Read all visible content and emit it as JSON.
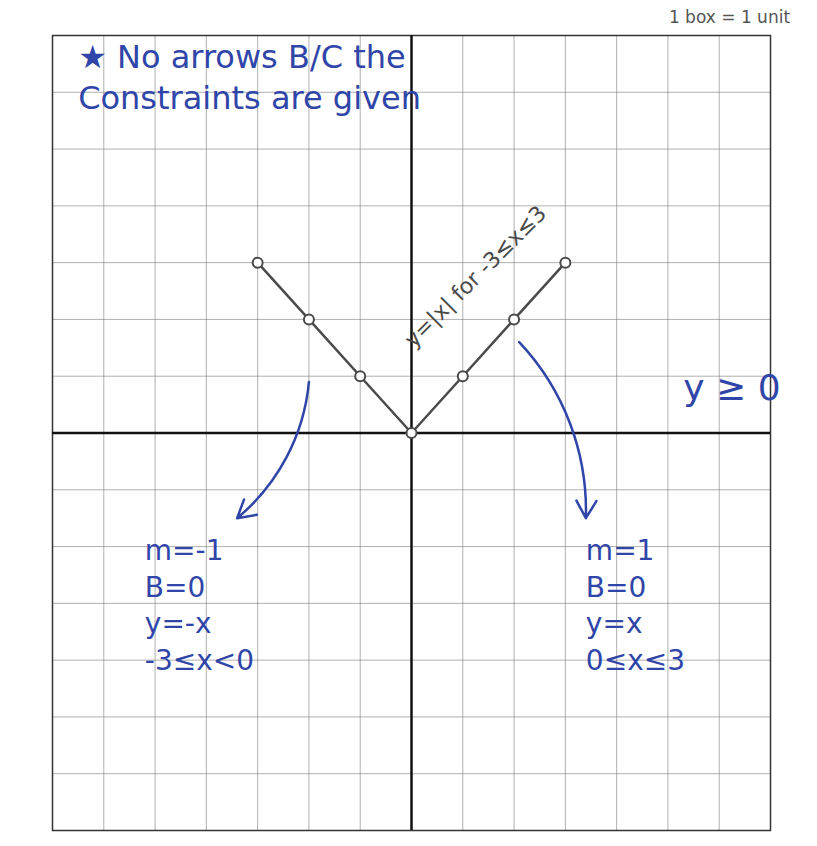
{
  "chart_data": {
    "type": "line",
    "x": [
      -3,
      -2,
      -1,
      0,
      1,
      2,
      3
    ],
    "series": [
      {
        "name": "y=|x| for -3≤x≤3",
        "color": "#4a4a4a",
        "marker": "circle",
        "values": [
          3,
          2,
          1,
          0,
          1,
          2,
          3
        ]
      }
    ],
    "xlim": [
      -7,
      7
    ],
    "ylim": [
      -7,
      7
    ],
    "xticks": [
      -7,
      -6,
      -5,
      -4,
      -3,
      -2,
      -1,
      0,
      1,
      2,
      3,
      4,
      5,
      6,
      7
    ],
    "yticks": [
      -7,
      -6,
      -5,
      -4,
      -3,
      -2,
      -1,
      0,
      1,
      2,
      3,
      4,
      5,
      6,
      7
    ],
    "grid": true,
    "tick_labels": false,
    "color": "#2f45a8",
    "annotations": [
      "★ No arrows B/C the\nConstraints are given",
      "y ≥ 0",
      "1 box = 1 unit",
      "m=-1\nB=0\ny=-x\n-3≤x<0",
      "m=1\nB=0\ny=x\n0≤x≤3"
    ]
  }
}
